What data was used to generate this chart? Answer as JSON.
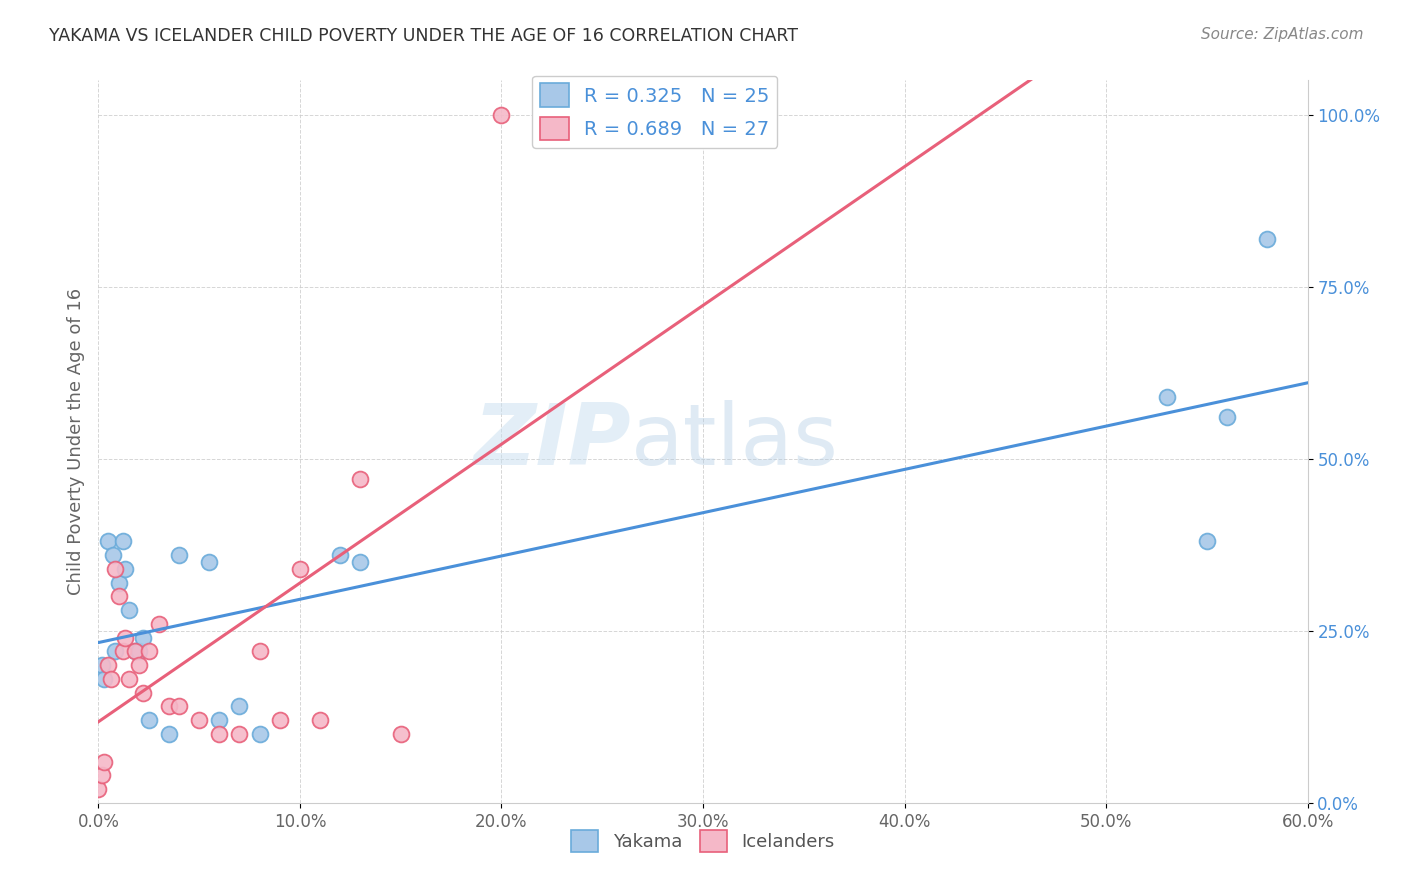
{
  "title": "YAKAMA VS ICELANDER CHILD POVERTY UNDER THE AGE OF 16 CORRELATION CHART",
  "source": "Source: ZipAtlas.com",
  "ylabel": "Child Poverty Under the Age of 16",
  "xlim": [
    0.0,
    0.6
  ],
  "ylim": [
    0.0,
    1.05
  ],
  "yakama_color": "#a8c8e8",
  "icelander_color": "#f5b8c8",
  "yakama_edge_color": "#6aabda",
  "icelander_edge_color": "#e8607a",
  "yakama_line_color": "#4a90d9",
  "icelander_line_color": "#e8607a",
  "R_yakama": "0.325",
  "N_yakama": "25",
  "R_icelander": "0.689",
  "N_icelander": "27",
  "yakama_x": [
    0.002,
    0.003,
    0.005,
    0.007,
    0.008,
    0.01,
    0.012,
    0.013,
    0.015,
    0.018,
    0.02,
    0.022,
    0.025,
    0.035,
    0.04,
    0.055,
    0.06,
    0.07,
    0.08,
    0.12,
    0.13,
    0.53,
    0.55,
    0.56,
    0.58
  ],
  "yakama_y": [
    0.2,
    0.18,
    0.38,
    0.36,
    0.22,
    0.32,
    0.38,
    0.34,
    0.28,
    0.22,
    0.22,
    0.24,
    0.12,
    0.1,
    0.36,
    0.35,
    0.12,
    0.14,
    0.1,
    0.36,
    0.35,
    0.59,
    0.38,
    0.56,
    0.82
  ],
  "icelander_x": [
    0.0,
    0.002,
    0.003,
    0.005,
    0.006,
    0.008,
    0.01,
    0.012,
    0.013,
    0.015,
    0.018,
    0.02,
    0.022,
    0.025,
    0.03,
    0.035,
    0.04,
    0.05,
    0.06,
    0.07,
    0.08,
    0.09,
    0.1,
    0.11,
    0.13,
    0.15,
    0.2
  ],
  "icelander_y": [
    0.02,
    0.04,
    0.06,
    0.2,
    0.18,
    0.34,
    0.3,
    0.22,
    0.24,
    0.18,
    0.22,
    0.2,
    0.16,
    0.22,
    0.26,
    0.14,
    0.14,
    0.12,
    0.1,
    0.1,
    0.22,
    0.12,
    0.34,
    0.12,
    0.47,
    0.1,
    1.0
  ],
  "background_color": "#ffffff",
  "grid_color": "#cccccc",
  "tick_label_color_y": "#4a90d9",
  "tick_label_color_x": "#666666",
  "title_color": "#333333",
  "source_color": "#888888",
  "ylabel_color": "#666666"
}
